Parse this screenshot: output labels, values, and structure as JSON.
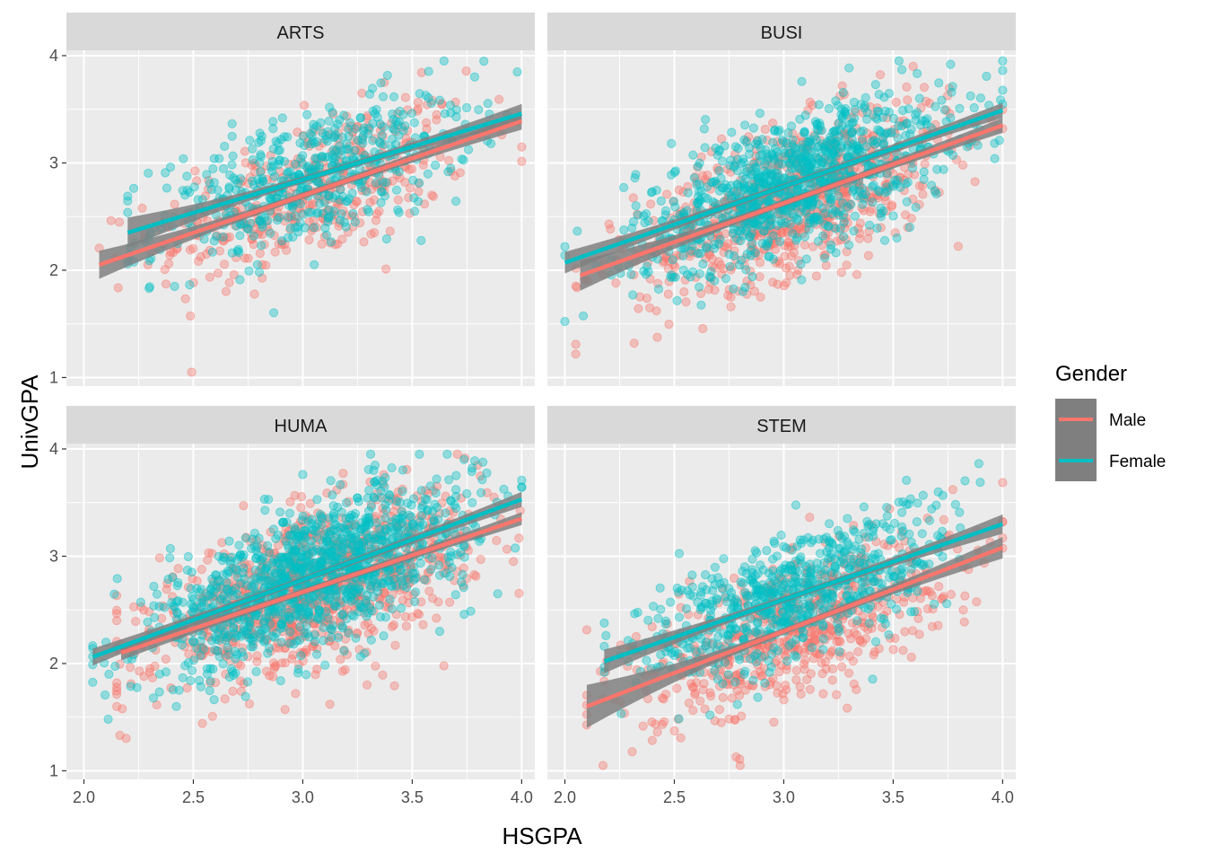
{
  "chart_data": {
    "type": "scatter",
    "xlabel": "HSGPA",
    "ylabel": "UnivGPA",
    "xlim": [
      1.92,
      4.06
    ],
    "ylim": [
      0.92,
      4.05
    ],
    "x_ticks": [
      2.0,
      2.5,
      3.0,
      3.5,
      4.0
    ],
    "x_tick_labels": [
      "2.0",
      "2.5",
      "3.0",
      "3.5",
      "4.0"
    ],
    "y_ticks": [
      1,
      2,
      3,
      4
    ],
    "y_tick_labels": [
      "1",
      "2",
      "3",
      "4"
    ],
    "grid": true,
    "legend": {
      "title": "Gender",
      "placement": "right",
      "entries": [
        {
          "label": "Male",
          "color": "#F8766D"
        },
        {
          "label": "Female",
          "color": "#00BFC4"
        }
      ]
    },
    "colors": {
      "male": "#F8766D",
      "female": "#00BFC4",
      "ribbon": "#808080",
      "panel_bg": "#EBEBEB",
      "strip_bg": "#D9D9D9"
    },
    "panels": [
      {
        "name": "ARTS",
        "fits": [
          {
            "series": "Male",
            "x": [
              2.07,
              4.0
            ],
            "y": [
              2.05,
              3.39
            ],
            "band": [
              [
                0.13,
                0.08
              ]
            ],
            "n": 420,
            "x_range": [
              2.07,
              4.0
            ],
            "y_sd": 0.33
          },
          {
            "series": "Female",
            "x": [
              2.2,
              4.0
            ],
            "y": [
              2.35,
              3.46
            ],
            "band": [
              [
                0.14,
                0.09
              ]
            ],
            "n": 520,
            "x_range": [
              2.2,
              3.98
            ],
            "y_sd": 0.3
          }
        ]
      },
      {
        "name": "BUSI",
        "fits": [
          {
            "series": "Male",
            "x": [
              2.07,
              4.0
            ],
            "y": [
              1.95,
              3.35
            ],
            "band": [
              [
                0.14,
                0.07
              ]
            ],
            "n": 780,
            "x_range": [
              2.05,
              4.0
            ],
            "y_sd": 0.34
          },
          {
            "series": "Female",
            "x": [
              2.0,
              4.0
            ],
            "y": [
              2.07,
              3.49
            ],
            "band": [
              [
                0.1,
                0.07
              ]
            ],
            "n": 950,
            "x_range": [
              2.0,
              4.0
            ],
            "y_sd": 0.32
          }
        ]
      },
      {
        "name": "HUMA",
        "fits": [
          {
            "series": "Male",
            "x": [
              2.17,
              4.0
            ],
            "y": [
              2.1,
              3.35
            ],
            "band": [
              [
                0.07,
                0.06
              ]
            ],
            "n": 1000,
            "x_range": [
              2.15,
              4.0
            ],
            "y_sd": 0.33
          },
          {
            "series": "Female",
            "x": [
              2.04,
              4.0
            ],
            "y": [
              2.06,
              3.53
            ],
            "band": [
              [
                0.08,
                0.07
              ]
            ],
            "n": 1150,
            "x_range": [
              2.04,
              4.0
            ],
            "y_sd": 0.32
          }
        ]
      },
      {
        "name": "STEM",
        "fits": [
          {
            "series": "Male",
            "x": [
              2.1,
              4.0
            ],
            "y": [
              1.6,
              3.08
            ],
            "band": [
              [
                0.2,
                0.1
              ]
            ],
            "n": 620,
            "x_range": [
              2.1,
              4.0
            ],
            "y_sd": 0.33
          },
          {
            "series": "Female",
            "x": [
              2.18,
              4.0
            ],
            "y": [
              2.02,
              3.3
            ],
            "band": [
              [
                0.11,
                0.09
              ]
            ],
            "n": 680,
            "x_range": [
              2.18,
              3.98
            ],
            "y_sd": 0.3
          }
        ]
      }
    ]
  }
}
